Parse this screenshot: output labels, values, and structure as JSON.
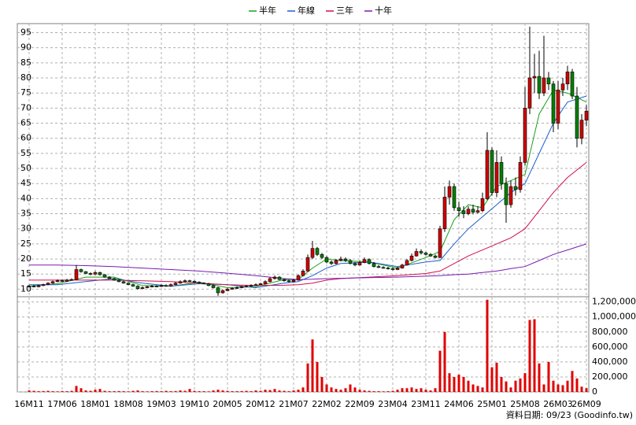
{
  "chart_data": {
    "type": "candlestick",
    "legend": "top",
    "grid": true,
    "up_color": "#d00000",
    "down_color": "#008000",
    "flat_color": "#000000",
    "categories": [
      "16M11",
      null,
      null,
      null,
      null,
      null,
      null,
      "17M06",
      null,
      null,
      null,
      null,
      null,
      null,
      "18M01",
      null,
      null,
      null,
      null,
      null,
      null,
      "18M08",
      null,
      null,
      null,
      null,
      null,
      null,
      "19M03",
      null,
      null,
      null,
      null,
      null,
      null,
      "19M10",
      null,
      null,
      null,
      null,
      null,
      null,
      "20M05",
      null,
      null,
      null,
      null,
      null,
      null,
      "20M12",
      null,
      null,
      null,
      null,
      null,
      null,
      "21M07",
      null,
      null,
      null,
      null,
      null,
      null,
      "22M02",
      null,
      null,
      null,
      null,
      null,
      null,
      "22M09",
      null,
      null,
      null,
      null,
      null,
      null,
      "23M04",
      null,
      null,
      null,
      null,
      null,
      null,
      "23M11",
      null,
      null,
      null,
      null,
      null,
      null,
      "24M06",
      null,
      null,
      null,
      null,
      null,
      null,
      "25M01",
      null,
      null,
      null,
      null,
      null,
      null,
      "25M08",
      null,
      null,
      null,
      null,
      null,
      null,
      "26M03",
      null,
      null,
      null,
      null,
      null,
      "26M09"
    ],
    "open": [
      10.8,
      11.0,
      10.8,
      11.2,
      11.5,
      12.0,
      12.5,
      12.8,
      12.6,
      13.0,
      13.2,
      16.5,
      15.8,
      15.2,
      15.0,
      15.5,
      14.8,
      14.0,
      13.5,
      13.0,
      12.5,
      12.0,
      11.5,
      11.0,
      10.2,
      10.5,
      10.8,
      11.0,
      10.9,
      11.2,
      11.0,
      11.5,
      12.0,
      12.5,
      12.8,
      12.6,
      12.3,
      12.0,
      11.8,
      11.2,
      10.5,
      8.8,
      9.5,
      10.0,
      10.3,
      10.5,
      10.8,
      11.0,
      11.3,
      11.5,
      11.8,
      12.5,
      13.5,
      14.0,
      13.2,
      12.8,
      12.5,
      13.0,
      14.5,
      16.0,
      20.5,
      23.5,
      21.5,
      20.5,
      19.0,
      18.5,
      19.5,
      20.0,
      19.5,
      18.5,
      18.0,
      18.8,
      19.8,
      18.5,
      17.5,
      17.2,
      17.0,
      16.8,
      16.5,
      17.0,
      18.0,
      19.5,
      21.0,
      22.5,
      22.0,
      21.5,
      21.0,
      20.5,
      30.0,
      40.5,
      44.0,
      37.0,
      36.0,
      35.0,
      36.5,
      35.5,
      36.0,
      40.0,
      56.0,
      42.0,
      52.0,
      45.0,
      38.0,
      44.0,
      43.0,
      52.0,
      70.0,
      80.0,
      80.5,
      75.0,
      80.0,
      78.0,
      65.0,
      76.0,
      78.0,
      82.0,
      74.0,
      60.0,
      66.0
    ],
    "high": [
      11.3,
      11.4,
      11.5,
      11.8,
      12.3,
      12.8,
      13.2,
      13.1,
      13.4,
      13.6,
      18.0,
      16.8,
      16.0,
      15.6,
      16.0,
      15.8,
      15.0,
      14.3,
      13.8,
      13.3,
      12.8,
      12.3,
      11.8,
      11.3,
      10.9,
      11.2,
      11.4,
      11.3,
      11.6,
      11.6,
      11.9,
      12.4,
      12.9,
      13.2,
      13.1,
      12.9,
      12.6,
      12.3,
      12.1,
      11.5,
      10.8,
      9.9,
      10.4,
      10.6,
      10.9,
      11.1,
      11.4,
      11.6,
      11.9,
      12.1,
      12.9,
      14.0,
      14.5,
      14.3,
      13.5,
      13.1,
      13.4,
      14.9,
      16.6,
      21.5,
      26.0,
      24.0,
      22.0,
      21.0,
      19.5,
      20.0,
      20.8,
      20.5,
      20.0,
      19.0,
      19.4,
      20.5,
      20.2,
      19.0,
      18.0,
      17.6,
      17.4,
      17.2,
      17.4,
      18.4,
      20.0,
      21.8,
      23.5,
      23.2,
      22.4,
      22.0,
      21.5,
      31.0,
      44.0,
      46.0,
      45.0,
      39.0,
      37.5,
      37.5,
      38.0,
      37.5,
      42.0,
      62.0,
      57.0,
      56.0,
      54.0,
      47.0,
      46.0,
      47.0,
      54.0,
      77.0,
      97.0,
      88.0,
      89.0,
      94.0,
      82.0,
      79.0,
      79.0,
      80.0,
      84.0,
      83.0,
      77.0,
      68.0,
      71.0
    ],
    "low": [
      10.5,
      10.6,
      10.6,
      11.0,
      11.3,
      11.8,
      12.3,
      12.4,
      12.4,
      12.8,
      13.0,
      15.5,
      15.0,
      14.6,
      14.7,
      14.5,
      13.8,
      13.3,
      12.8,
      12.3,
      11.8,
      11.3,
      10.8,
      9.8,
      10.0,
      10.3,
      10.6,
      10.7,
      10.7,
      10.8,
      10.8,
      11.3,
      11.8,
      12.3,
      12.4,
      12.1,
      11.8,
      11.6,
      11.0,
      10.2,
      7.8,
      8.5,
      9.3,
      9.8,
      10.1,
      10.3,
      10.6,
      10.8,
      11.1,
      11.3,
      11.6,
      12.3,
      13.2,
      13.0,
      12.5,
      12.2,
      12.3,
      12.8,
      14.2,
      15.8,
      20.0,
      21.0,
      20.0,
      18.6,
      18.0,
      18.2,
      19.2,
      19.0,
      18.2,
      17.6,
      17.8,
      18.6,
      18.2,
      17.2,
      17.0,
      16.8,
      16.5,
      16.2,
      16.3,
      16.8,
      17.8,
      19.2,
      20.8,
      21.5,
      21.2,
      20.7,
      20.2,
      20.3,
      29.0,
      38.0,
      36.0,
      34.0,
      33.5,
      34.5,
      34.8,
      35.0,
      35.5,
      39.5,
      41.0,
      40.5,
      43.0,
      32.0,
      37.0,
      41.0,
      42.0,
      51.0,
      68.0,
      75.0,
      73.0,
      74.0,
      76.0,
      62.0,
      63.0,
      74.0,
      76.0,
      73.0,
      57.0,
      58.0,
      64.0
    ],
    "close": [
      11.0,
      10.8,
      11.2,
      11.5,
      12.0,
      12.5,
      12.8,
      12.6,
      13.0,
      13.2,
      16.5,
      15.8,
      15.2,
      15.0,
      15.5,
      14.8,
      14.0,
      13.5,
      13.0,
      12.5,
      12.0,
      11.5,
      11.0,
      10.2,
      10.5,
      10.8,
      11.0,
      10.9,
      11.2,
      11.0,
      11.5,
      12.0,
      12.5,
      12.8,
      12.6,
      12.3,
      12.0,
      11.8,
      11.2,
      10.5,
      8.8,
      9.5,
      10.0,
      10.3,
      10.5,
      10.8,
      11.0,
      11.3,
      11.5,
      11.8,
      12.5,
      13.5,
      14.0,
      13.2,
      12.8,
      12.5,
      13.0,
      14.5,
      16.0,
      20.5,
      23.5,
      21.5,
      20.5,
      19.0,
      18.5,
      19.5,
      20.0,
      19.5,
      18.5,
      18.0,
      18.8,
      19.8,
      18.5,
      17.5,
      17.2,
      17.0,
      16.8,
      16.5,
      17.0,
      18.0,
      19.5,
      21.0,
      22.5,
      22.0,
      21.5,
      21.0,
      20.5,
      30.0,
      40.5,
      44.0,
      37.0,
      36.0,
      35.0,
      36.5,
      35.5,
      36.0,
      40.0,
      56.0,
      42.0,
      52.0,
      45.0,
      38.0,
      44.0,
      43.0,
      52.0,
      70.0,
      80.0,
      80.5,
      75.0,
      80.0,
      78.0,
      65.0,
      76.0,
      78.0,
      82.0,
      74.0,
      60.0,
      66.0,
      69.0
    ],
    "ylim": [
      7.5,
      98
    ],
    "yticks": [
      10,
      15,
      20,
      25,
      30,
      35,
      40,
      45,
      50,
      55,
      60,
      65,
      70,
      75,
      80,
      85,
      90,
      95
    ],
    "series": [
      {
        "name": "半年",
        "color": "#1aa01a",
        "x": [
          0,
          6,
          12,
          18,
          24,
          30,
          36,
          42,
          48,
          54,
          57,
          60,
          63,
          66,
          72,
          78,
          84,
          87,
          90,
          93,
          96,
          99,
          102,
          105,
          108,
          111,
          114,
          118
        ],
        "values": [
          11.0,
          11.8,
          14.0,
          14.0,
          11.2,
          11.0,
          12.3,
          10.5,
          10.8,
          13.2,
          13.2,
          17.0,
          20.0,
          19.5,
          19.0,
          17.0,
          20.5,
          22.5,
          33.0,
          38.0,
          37.0,
          44.0,
          46.0,
          48.0,
          68.0,
          76.0,
          75.0,
          72.0
        ]
      },
      {
        "name": "年線",
        "color": "#1c5fd0",
        "x": [
          0,
          6,
          12,
          18,
          24,
          30,
          36,
          42,
          48,
          54,
          57,
          60,
          63,
          66,
          72,
          78,
          84,
          87,
          90,
          93,
          96,
          99,
          102,
          105,
          108,
          111,
          114,
          118
        ],
        "values": [
          11.5,
          11.5,
          12.5,
          13.5,
          12.0,
          11.0,
          11.8,
          11.5,
          10.5,
          12.0,
          12.5,
          14.5,
          17.0,
          18.5,
          19.0,
          17.5,
          19.0,
          19.5,
          25.0,
          30.0,
          34.0,
          38.0,
          42.0,
          45.0,
          55.0,
          65.0,
          72.0,
          74.0
        ]
      },
      {
        "name": "三年",
        "color": "#d0104a",
        "x": [
          0,
          6,
          12,
          18,
          24,
          30,
          36,
          42,
          48,
          54,
          57,
          60,
          63,
          66,
          72,
          78,
          84,
          87,
          90,
          93,
          96,
          99,
          102,
          105,
          108,
          111,
          114,
          118
        ],
        "values": [
          13.0,
          13.0,
          13.0,
          13.0,
          12.8,
          12.5,
          12.0,
          11.5,
          11.2,
          11.3,
          11.5,
          12.0,
          13.0,
          13.5,
          14.0,
          14.5,
          15.2,
          16.0,
          18.5,
          21.0,
          23.0,
          25.0,
          27.0,
          30.0,
          36.0,
          42.0,
          47.0,
          52.0
        ]
      },
      {
        "name": "十年",
        "color": "#7a1ab0",
        "x": [
          0,
          6,
          12,
          18,
          24,
          30,
          36,
          42,
          48,
          54,
          57,
          60,
          63,
          66,
          72,
          78,
          84,
          87,
          90,
          93,
          96,
          99,
          102,
          105,
          108,
          111,
          114,
          118
        ],
        "values": [
          18.0,
          18.0,
          17.8,
          17.5,
          17.0,
          16.5,
          16.0,
          15.3,
          14.5,
          13.5,
          13.2,
          13.3,
          13.5,
          13.6,
          13.8,
          14.0,
          14.3,
          14.5,
          14.8,
          15.0,
          15.5,
          16.0,
          16.8,
          17.5,
          19.5,
          21.5,
          23.0,
          25.0
        ]
      }
    ],
    "volume": {
      "color": "#e00000",
      "values": [
        20000,
        15000,
        10000,
        12000,
        15000,
        10000,
        8000,
        12000,
        10000,
        15000,
        80000,
        50000,
        20000,
        15000,
        30000,
        40000,
        15000,
        10000,
        10000,
        12000,
        10000,
        8000,
        15000,
        20000,
        10000,
        8000,
        10000,
        12000,
        10000,
        15000,
        10000,
        12000,
        20000,
        15000,
        40000,
        15000,
        10000,
        10000,
        8000,
        20000,
        30000,
        20000,
        15000,
        10000,
        10000,
        12000,
        15000,
        10000,
        20000,
        15000,
        30000,
        25000,
        40000,
        20000,
        15000,
        10000,
        20000,
        30000,
        60000,
        380000,
        700000,
        400000,
        200000,
        100000,
        60000,
        40000,
        30000,
        50000,
        100000,
        60000,
        30000,
        20000,
        15000,
        10000,
        10000,
        8000,
        10000,
        15000,
        30000,
        50000,
        50000,
        60000,
        40000,
        50000,
        30000,
        20000,
        50000,
        550000,
        800000,
        250000,
        200000,
        230000,
        200000,
        150000,
        100000,
        80000,
        60000,
        1230000,
        330000,
        390000,
        200000,
        140000,
        60000,
        150000,
        180000,
        250000,
        960000,
        970000,
        380000,
        100000,
        400000,
        150000,
        100000,
        90000,
        150000,
        280000,
        180000,
        70000,
        50000
      ],
      "ylim": [
        0,
        1270000
      ],
      "yticks": [
        0,
        {
          "value": 200000,
          "label": "200,000"
        },
        {
          "value": 400000,
          "label": "400,000"
        },
        {
          "value": 600000,
          "label": "600,000"
        },
        {
          "value": 800000,
          "label": "800,000"
        },
        {
          "value": 1000000,
          "label": "1,000,000"
        },
        {
          "value": 1200000,
          "label": "1,200,000"
        }
      ]
    },
    "source": "資料日期: 09/23 (Goodinfo.tw)"
  }
}
